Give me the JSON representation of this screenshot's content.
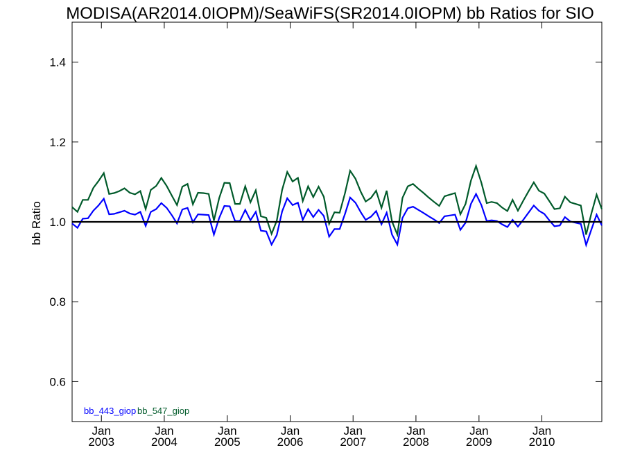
{
  "chart_data": {
    "type": "line",
    "title": "MODISA(AR2014.0IOPM)/SeaWiFS(SR2014.0IOPM)  bb Ratios for SIO",
    "ylabel": "bb Ratio",
    "xlabel": "",
    "ylim": [
      0.5,
      1.5
    ],
    "xlim": [
      "2002-07-15",
      "2010-12-15"
    ],
    "y_ticks": [
      "0.6",
      "0.8",
      "1.0",
      "1.2",
      "1.4"
    ],
    "x_ticks": [
      {
        "top": "Jan",
        "bottom": "2003",
        "date": "2003-01-01"
      },
      {
        "top": "Jan",
        "bottom": "2004",
        "date": "2004-01-01"
      },
      {
        "top": "Jan",
        "bottom": "2005",
        "date": "2005-01-01"
      },
      {
        "top": "Jan",
        "bottom": "2006",
        "date": "2006-01-01"
      },
      {
        "top": "Jan",
        "bottom": "2007",
        "date": "2007-01-01"
      },
      {
        "top": "Jan",
        "bottom": "2008",
        "date": "2008-01-01"
      },
      {
        "top": "Jan",
        "bottom": "2009",
        "date": "2009-01-01"
      },
      {
        "top": "Jan",
        "bottom": "2010",
        "date": "2010-01-01"
      }
    ],
    "reference_line": {
      "y": 1.0,
      "color": "#000000"
    },
    "grid": false,
    "legend_position": "bottom-left",
    "series": [
      {
        "name": "bb_443_giop",
        "color": "#0000ff",
        "points": [
          [
            "2002-07",
            0.996
          ],
          [
            "2002-08",
            0.985
          ],
          [
            "2002-09",
            1.008
          ],
          [
            "2002-10",
            1.009
          ],
          [
            "2002-11",
            1.028
          ],
          [
            "2002-12",
            1.041
          ],
          [
            "2003-01",
            1.058
          ],
          [
            "2003-02",
            1.019
          ],
          [
            "2003-03",
            1.02
          ],
          [
            "2003-04",
            1.024
          ],
          [
            "2003-05",
            1.028
          ],
          [
            "2003-06",
            1.021
          ],
          [
            "2003-07",
            1.018
          ],
          [
            "2003-08",
            1.025
          ],
          [
            "2003-09",
            0.99
          ],
          [
            "2003-10",
            1.025
          ],
          [
            "2003-11",
            1.032
          ],
          [
            "2003-12",
            1.047
          ],
          [
            "2004-01",
            1.035
          ],
          [
            "2004-02",
            1.016
          ],
          [
            "2004-03",
            0.996
          ],
          [
            "2004-04",
            1.031
          ],
          [
            "2004-05",
            1.035
          ],
          [
            "2004-06",
            0.999
          ],
          [
            "2004-07",
            1.019
          ],
          [
            "2004-08",
            1.018
          ],
          [
            "2004-09",
            1.017
          ],
          [
            "2004-10",
            0.968
          ],
          [
            "2004-11",
            1.01
          ],
          [
            "2004-12",
            1.04
          ],
          [
            "2005-01",
            1.039
          ],
          [
            "2005-02",
            1.002
          ],
          [
            "2005-03",
            1.002
          ],
          [
            "2005-04",
            1.03
          ],
          [
            "2005-05",
            1.004
          ],
          [
            "2005-06",
            1.025
          ],
          [
            "2005-07",
            0.978
          ],
          [
            "2005-08",
            0.976
          ],
          [
            "2005-09",
            0.943
          ],
          [
            "2005-10",
            0.967
          ],
          [
            "2005-11",
            1.026
          ],
          [
            "2005-12",
            1.059
          ],
          [
            "2006-01",
            1.042
          ],
          [
            "2006-02",
            1.048
          ],
          [
            "2006-03",
            1.005
          ],
          [
            "2006-04",
            1.032
          ],
          [
            "2006-05",
            1.012
          ],
          [
            "2006-06",
            1.03
          ],
          [
            "2006-07",
            1.015
          ],
          [
            "2006-08",
            0.963
          ],
          [
            "2006-09",
            0.982
          ],
          [
            "2006-10",
            0.982
          ],
          [
            "2006-11",
            1.02
          ],
          [
            "2006-12",
            1.061
          ],
          [
            "2007-01",
            1.048
          ],
          [
            "2007-02",
            1.024
          ],
          [
            "2007-03",
            1.005
          ],
          [
            "2007-04",
            1.013
          ],
          [
            "2007-05",
            1.027
          ],
          [
            "2007-06",
            0.994
          ],
          [
            "2007-07",
            1.023
          ],
          [
            "2007-08",
            0.968
          ],
          [
            "2007-09",
            0.943
          ],
          [
            "2007-10",
            1.01
          ],
          [
            "2007-11",
            1.034
          ],
          [
            "2007-12",
            1.038
          ],
          [
            "2008-01",
            1.03
          ],
          [
            "2008-02",
            1.022
          ],
          [
            "2008-03",
            1.014
          ],
          [
            "2008-04",
            1.006
          ],
          [
            "2008-05",
            0.997
          ],
          [
            "2008-06",
            1.014
          ],
          [
            "2008-07",
            1.016
          ],
          [
            "2008-08",
            1.018
          ],
          [
            "2008-09",
            0.98
          ],
          [
            "2008-10",
            0.998
          ],
          [
            "2008-11",
            1.045
          ],
          [
            "2008-12",
            1.07
          ],
          [
            "2009-01",
            1.042
          ],
          [
            "2009-02",
            1.002
          ],
          [
            "2009-03",
            1.004
          ],
          [
            "2009-04",
            1.002
          ],
          [
            "2009-05",
            0.994
          ],
          [
            "2009-06",
            0.987
          ],
          [
            "2009-07",
            1.005
          ],
          [
            "2009-08",
            0.988
          ],
          [
            "2009-09",
            1.005
          ],
          [
            "2009-10",
            1.023
          ],
          [
            "2009-11",
            1.041
          ],
          [
            "2009-12",
            1.028
          ],
          [
            "2010-01",
            1.02
          ],
          [
            "2010-02",
            1.003
          ],
          [
            "2010-03",
            0.989
          ],
          [
            "2010-04",
            0.991
          ],
          [
            "2010-05",
            1.012
          ],
          [
            "2010-06",
            1.001
          ],
          [
            "2010-07",
            0.998
          ],
          [
            "2010-08",
            0.995
          ],
          [
            "2010-09",
            0.942
          ],
          [
            "2010-10",
            0.98
          ],
          [
            "2010-11",
            1.018
          ],
          [
            "2010-12",
            0.991
          ]
        ]
      },
      {
        "name": "bb_547_giop",
        "color": "#005a2a",
        "points": [
          [
            "2002-07",
            1.037
          ],
          [
            "2002-08",
            1.025
          ],
          [
            "2002-09",
            1.055
          ],
          [
            "2002-10",
            1.055
          ],
          [
            "2002-11",
            1.085
          ],
          [
            "2002-12",
            1.102
          ],
          [
            "2003-01",
            1.122
          ],
          [
            "2003-02",
            1.07
          ],
          [
            "2003-03",
            1.072
          ],
          [
            "2003-04",
            1.077
          ],
          [
            "2003-05",
            1.084
          ],
          [
            "2003-06",
            1.073
          ],
          [
            "2003-07",
            1.069
          ],
          [
            "2003-08",
            1.077
          ],
          [
            "2003-09",
            1.032
          ],
          [
            "2003-10",
            1.08
          ],
          [
            "2003-11",
            1.09
          ],
          [
            "2003-12",
            1.11
          ],
          [
            "2004-01",
            1.09
          ],
          [
            "2004-02",
            1.065
          ],
          [
            "2004-03",
            1.042
          ],
          [
            "2004-04",
            1.088
          ],
          [
            "2004-05",
            1.095
          ],
          [
            "2004-06",
            1.044
          ],
          [
            "2004-07",
            1.073
          ],
          [
            "2004-08",
            1.072
          ],
          [
            "2004-09",
            1.07
          ],
          [
            "2004-10",
            1.003
          ],
          [
            "2004-11",
            1.06
          ],
          [
            "2004-12",
            1.098
          ],
          [
            "2005-01",
            1.097
          ],
          [
            "2005-02",
            1.045
          ],
          [
            "2005-03",
            1.045
          ],
          [
            "2005-04",
            1.089
          ],
          [
            "2005-05",
            1.049
          ],
          [
            "2005-06",
            1.079
          ],
          [
            "2005-07",
            1.014
          ],
          [
            "2005-08",
            1.01
          ],
          [
            "2005-09",
            0.97
          ],
          [
            "2005-10",
            1.003
          ],
          [
            "2005-11",
            1.08
          ],
          [
            "2005-12",
            1.125
          ],
          [
            "2006-01",
            1.101
          ],
          [
            "2006-02",
            1.11
          ],
          [
            "2006-03",
            1.052
          ],
          [
            "2006-04",
            1.089
          ],
          [
            "2006-05",
            1.062
          ],
          [
            "2006-06",
            1.088
          ],
          [
            "2006-07",
            1.063
          ],
          [
            "2006-08",
            0.995
          ],
          [
            "2006-09",
            1.024
          ],
          [
            "2006-10",
            1.023
          ],
          [
            "2006-11",
            1.072
          ],
          [
            "2006-12",
            1.128
          ],
          [
            "2007-01",
            1.108
          ],
          [
            "2007-02",
            1.075
          ],
          [
            "2007-03",
            1.051
          ],
          [
            "2007-04",
            1.06
          ],
          [
            "2007-05",
            1.078
          ],
          [
            "2007-06",
            1.035
          ],
          [
            "2007-07",
            1.078
          ],
          [
            "2007-08",
            1.001
          ],
          [
            "2007-09",
            0.968
          ],
          [
            "2007-10",
            1.06
          ],
          [
            "2007-11",
            1.089
          ],
          [
            "2007-12",
            1.095
          ],
          [
            "2008-01",
            1.083
          ],
          [
            "2008-02",
            1.072
          ],
          [
            "2008-03",
            1.061
          ],
          [
            "2008-04",
            1.05
          ],
          [
            "2008-05",
            1.04
          ],
          [
            "2008-06",
            1.064
          ],
          [
            "2008-07",
            1.068
          ],
          [
            "2008-08",
            1.072
          ],
          [
            "2008-09",
            1.019
          ],
          [
            "2008-10",
            1.045
          ],
          [
            "2008-11",
            1.103
          ],
          [
            "2008-12",
            1.14
          ],
          [
            "2009-01",
            1.098
          ],
          [
            "2009-02",
            1.047
          ],
          [
            "2009-03",
            1.05
          ],
          [
            "2009-04",
            1.047
          ],
          [
            "2009-05",
            1.036
          ],
          [
            "2009-06",
            1.027
          ],
          [
            "2009-07",
            1.055
          ],
          [
            "2009-08",
            1.028
          ],
          [
            "2009-09",
            1.053
          ],
          [
            "2009-10",
            1.076
          ],
          [
            "2009-11",
            1.099
          ],
          [
            "2009-12",
            1.078
          ],
          [
            "2010-01",
            1.071
          ],
          [
            "2010-02",
            1.051
          ],
          [
            "2010-03",
            1.032
          ],
          [
            "2010-04",
            1.034
          ],
          [
            "2010-05",
            1.063
          ],
          [
            "2010-06",
            1.049
          ],
          [
            "2010-07",
            1.045
          ],
          [
            "2010-08",
            1.041
          ],
          [
            "2010-09",
            0.968
          ],
          [
            "2010-10",
            1.02
          ],
          [
            "2010-11",
            1.068
          ],
          [
            "2010-12",
            1.032
          ]
        ]
      }
    ]
  }
}
